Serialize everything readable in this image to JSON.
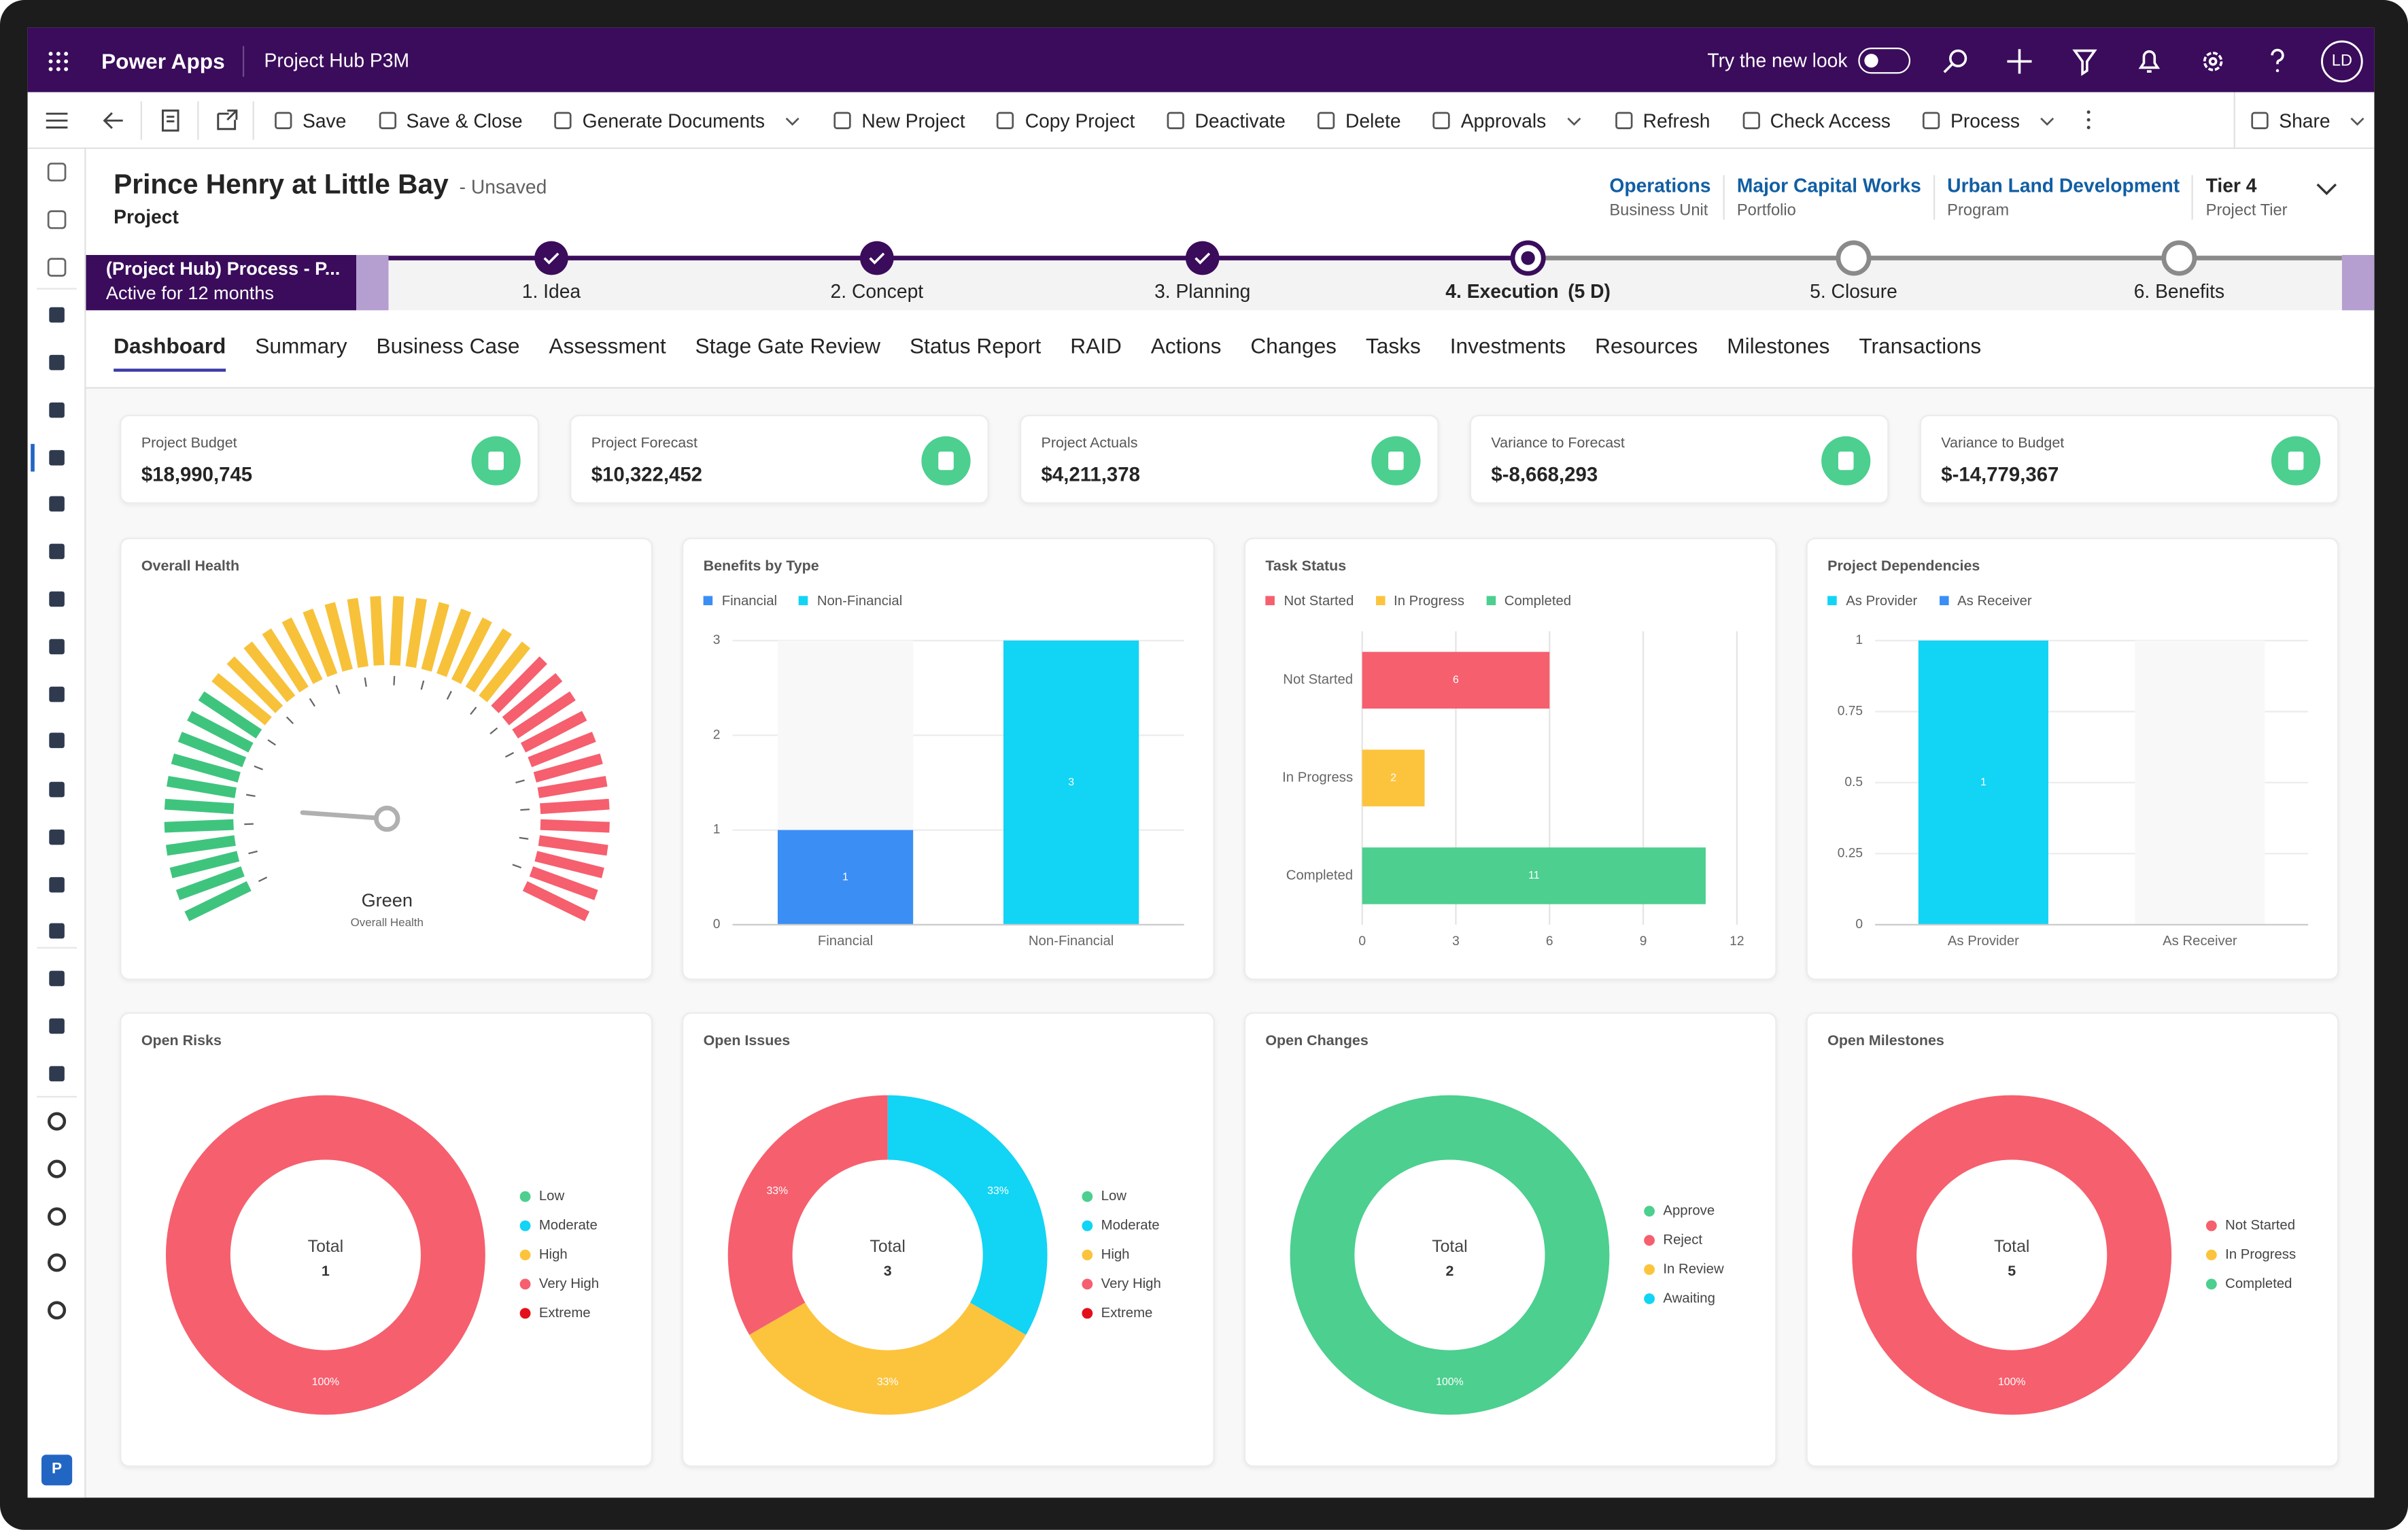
{
  "app": {
    "name": "Power Apps",
    "environment": "Project Hub P3M",
    "new_look": "Try the new look",
    "new_look_on": false,
    "user": "LD",
    "area_badge": "P"
  },
  "commands": [
    {
      "label": "Save"
    },
    {
      "label": "Save & Close"
    },
    {
      "label": "Generate Documents",
      "menu": true
    },
    {
      "label": "New Project"
    },
    {
      "label": "Copy Project"
    },
    {
      "label": "Deactivate"
    },
    {
      "label": "Delete"
    },
    {
      "label": "Approvals",
      "menu": true
    },
    {
      "label": "Refresh"
    },
    {
      "label": "Check Access"
    },
    {
      "label": "Process",
      "menu": true
    }
  ],
  "share": {
    "label": "Share",
    "menu": true
  },
  "record": {
    "title": "Prince Henry at Little Bay",
    "status": "- Unsaved",
    "entity": "Project",
    "fields": [
      {
        "value": "Operations",
        "label": "Business Unit",
        "link": true
      },
      {
        "value": "Major Capital Works",
        "label": "Portfolio",
        "link": true
      },
      {
        "value": "Urban Land Development",
        "label": "Program",
        "link": true
      },
      {
        "value": "Tier 4",
        "label": "Project Tier",
        "link": false
      }
    ]
  },
  "process": {
    "name": "(Project Hub) Process - P...",
    "age": "Active for 12 months",
    "active_stage": 3,
    "stages": [
      {
        "label": "1. Idea"
      },
      {
        "label": "2. Concept"
      },
      {
        "label": "3. Planning"
      },
      {
        "label": "4. Execution",
        "duration": "(5 D)"
      },
      {
        "label": "5. Closure"
      },
      {
        "label": "6. Benefits"
      }
    ]
  },
  "tabs": {
    "items": [
      "Dashboard",
      "Summary",
      "Business Case",
      "Assessment",
      "Stage Gate Review",
      "Status Report",
      "RAID",
      "Actions",
      "Changes",
      "Tasks",
      "Investments",
      "Resources",
      "Milestones",
      "Transactions"
    ],
    "active": 0
  },
  "kpis": [
    {
      "label": "Project Budget",
      "value": "$18,990,745"
    },
    {
      "label": "Project Forecast",
      "value": "$10,322,452"
    },
    {
      "label": "Project Actuals",
      "value": "$4,211,378"
    },
    {
      "label": "Variance to Forecast",
      "value": "$-8,668,293"
    },
    {
      "label": "Variance to Budget",
      "value": "$-14,779,367"
    }
  ],
  "health": {
    "title": "Overall Health",
    "status": "Green",
    "caption": "Overall Health"
  },
  "benefits": {
    "type": "bar",
    "title": "Benefits by Type",
    "categories": [
      "Financial",
      "Non-Financial"
    ],
    "series": [
      {
        "name": "Financial",
        "color": "#3a8ef4",
        "values": [
          1,
          null
        ]
      },
      {
        "name": "Non-Financial",
        "color": "#12d4f4",
        "values": [
          null,
          3
        ]
      }
    ],
    "ylim": [
      0,
      3
    ],
    "yticks": [
      0,
      1,
      2,
      3
    ],
    "grid": true
  },
  "tasks": {
    "type": "hbar",
    "title": "Task Status",
    "categories": [
      "Not Started",
      "In Progress",
      "Completed"
    ],
    "values": [
      6,
      2,
      11
    ],
    "colors": [
      "#f65f6e",
      "#fcc43d",
      "#4ccf8f"
    ],
    "xlim": [
      0,
      12
    ],
    "xticks": [
      0,
      3,
      6,
      9,
      12
    ],
    "grid": true
  },
  "dependencies": {
    "type": "bar",
    "title": "Project Dependencies",
    "categories": [
      "As Provider",
      "As Receiver"
    ],
    "series": [
      {
        "name": "As Provider",
        "color": "#12d4f4",
        "values": [
          1,
          null
        ]
      },
      {
        "name": "As Receiver",
        "color": "#3a8ef4",
        "values": [
          null,
          0
        ]
      }
    ],
    "ylim": [
      0,
      1
    ],
    "yticks": [
      0,
      0.25,
      0.5,
      0.75,
      1
    ],
    "grid": true
  },
  "donuts": [
    {
      "type": "donut",
      "title": "Open Risks",
      "total_label": "Total",
      "total": 1,
      "categories": [
        "Low",
        "Moderate",
        "High",
        "Very High",
        "Extreme"
      ],
      "colors": [
        "#4ccf8f",
        "#12d4f4",
        "#fcc43d",
        "#f65f6e",
        "#e3101c"
      ],
      "values": [
        0,
        0,
        0,
        100,
        0
      ],
      "value_labels": [
        null,
        null,
        null,
        "100%",
        null
      ]
    },
    {
      "type": "donut",
      "title": "Open Issues",
      "total_label": "Total",
      "total": 3,
      "categories": [
        "Low",
        "Moderate",
        "High",
        "Very High",
        "Extreme"
      ],
      "colors": [
        "#4ccf8f",
        "#12d4f4",
        "#fcc43d",
        "#f65f6e",
        "#e3101c"
      ],
      "values": [
        0,
        33,
        33,
        33,
        0
      ],
      "value_labels": [
        null,
        "33%",
        "33%",
        "33%",
        null
      ]
    },
    {
      "type": "donut",
      "title": "Open Changes",
      "total_label": "Total",
      "total": 2,
      "categories": [
        "Approve",
        "Reject",
        "In Review",
        "Awaiting"
      ],
      "colors": [
        "#4ccf8f",
        "#f65f6e",
        "#fcc43d",
        "#12d4f4"
      ],
      "values": [
        100,
        0,
        0,
        0
      ],
      "value_labels": [
        "100%",
        null,
        null,
        null
      ]
    },
    {
      "type": "donut",
      "title": "Open Milestones",
      "total_label": "Total",
      "total": 5,
      "categories": [
        "Not Started",
        "In Progress",
        "Completed"
      ],
      "colors": [
        "#f65f6e",
        "#fcc43d",
        "#4ccf8f"
      ],
      "values": [
        100,
        0,
        0
      ],
      "value_labels": [
        "100%",
        null,
        null
      ]
    }
  ]
}
